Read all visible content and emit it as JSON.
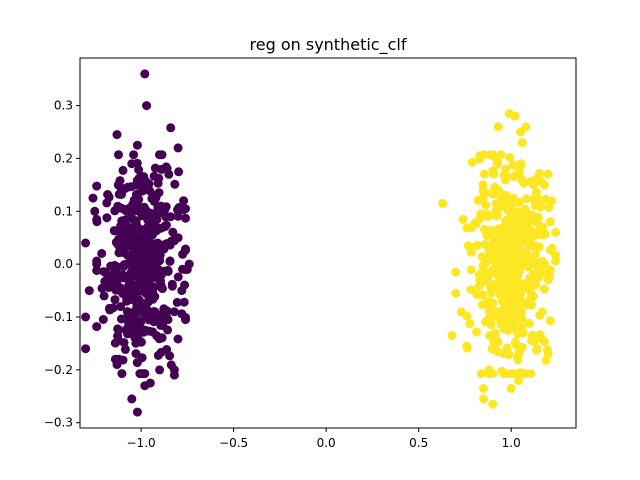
{
  "chart_data": {
    "type": "scatter",
    "title": "reg on synthetic_clf",
    "xlabel": "",
    "ylabel": "",
    "xlim": [
      -1.33,
      1.35
    ],
    "ylim": [
      -0.31,
      0.39
    ],
    "grid": false,
    "legend": "none",
    "x_ticks": [
      -1.0,
      -0.5,
      0.0,
      0.5,
      1.0
    ],
    "x_tick_labels": [
      "−1.0",
      "−0.5",
      "0.0",
      "0.5",
      "1.0"
    ],
    "y_ticks": [
      -0.3,
      -0.2,
      -0.1,
      0.0,
      0.1,
      0.2,
      0.3
    ],
    "y_tick_labels": [
      "−0.3",
      "−0.2",
      "−0.1",
      "0.0",
      "0.1",
      "0.2",
      "0.3"
    ],
    "series": [
      {
        "color": "#440154",
        "center": [
          -1.0,
          0.0
        ],
        "x_std": 0.1,
        "y_std": 0.09,
        "count": 500,
        "points": [
          [
            -0.98,
            0.36
          ],
          [
            -0.97,
            0.3
          ],
          [
            -1.13,
            0.245
          ],
          [
            -0.84,
            0.258
          ],
          [
            -0.8,
            0.22
          ],
          [
            -1.02,
            0.225
          ],
          [
            -1.05,
            0.19
          ],
          [
            -0.85,
            0.17
          ],
          [
            -1.26,
            0.125
          ],
          [
            -1.25,
            0.1
          ],
          [
            -1.3,
            0.04
          ],
          [
            -1.24,
            0.0
          ],
          [
            -0.74,
            0.0
          ],
          [
            -0.75,
            -0.01
          ],
          [
            -1.3,
            -0.1
          ],
          [
            -1.3,
            -0.16
          ],
          [
            -1.13,
            -0.19
          ],
          [
            -1.12,
            -0.18
          ],
          [
            -1.05,
            -0.255
          ],
          [
            -1.02,
            -0.28
          ],
          [
            -0.98,
            -0.23
          ],
          [
            -0.95,
            -0.225
          ],
          [
            -0.82,
            -0.2
          ],
          [
            -0.82,
            -0.21
          ],
          [
            -0.9,
            -0.2
          ],
          [
            -1.28,
            -0.05
          ],
          [
            -1.2,
            -0.06
          ],
          [
            -0.77,
            0.12
          ],
          [
            -0.8,
            0.05
          ],
          [
            -0.78,
            -0.05
          ]
        ]
      },
      {
        "color": "#fde725",
        "center": [
          1.0,
          0.0
        ],
        "x_std": 0.1,
        "y_std": 0.09,
        "count": 500,
        "points": [
          [
            0.99,
            0.285
          ],
          [
            1.02,
            0.28
          ],
          [
            1.05,
            0.25
          ],
          [
            1.08,
            0.26
          ],
          [
            0.93,
            0.26
          ],
          [
            1.06,
            0.23
          ],
          [
            0.83,
            0.205
          ],
          [
            1.2,
            0.17
          ],
          [
            1.18,
            0.15
          ],
          [
            1.22,
            0.12
          ],
          [
            0.63,
            0.115
          ],
          [
            0.74,
            0.085
          ],
          [
            1.24,
            0.06
          ],
          [
            1.22,
            0.03
          ],
          [
            0.7,
            -0.015
          ],
          [
            0.7,
            -0.055
          ],
          [
            0.68,
            -0.135
          ],
          [
            0.76,
            -0.155
          ],
          [
            1.2,
            -0.17
          ],
          [
            0.85,
            -0.235
          ],
          [
            0.85,
            -0.255
          ],
          [
            0.9,
            -0.265
          ],
          [
            1.0,
            -0.235
          ],
          [
            1.04,
            -0.22
          ],
          [
            1.05,
            -0.205
          ],
          [
            0.88,
            -0.2
          ],
          [
            1.16,
            -0.14
          ],
          [
            1.18,
            0.0
          ],
          [
            1.2,
            -0.03
          ],
          [
            0.73,
            -0.09
          ]
        ]
      }
    ]
  }
}
